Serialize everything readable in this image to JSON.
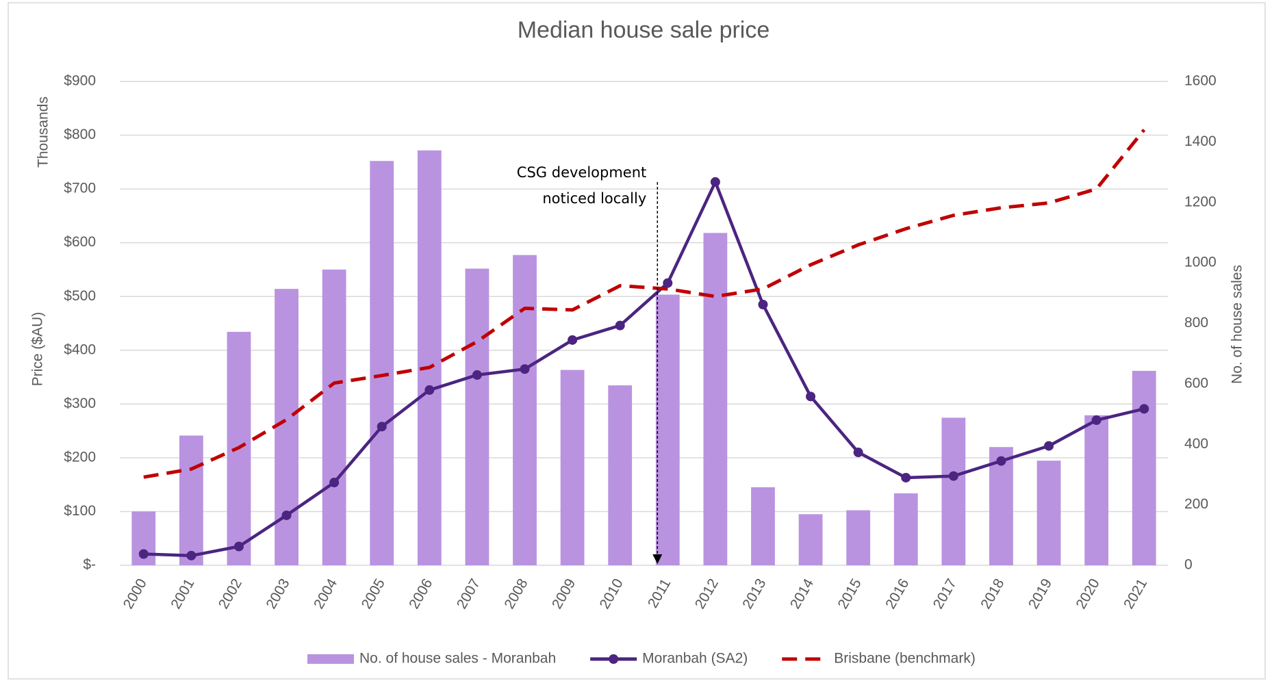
{
  "chart_data": {
    "type": "bar_line",
    "title": "Median house sale price",
    "y_label": "Price ($AU)",
    "y_unit_label": "Thousands",
    "y2_label": "No. of house sales",
    "categories": [
      "2000",
      "2001",
      "2002",
      "2003",
      "2004",
      "2005",
      "2006",
      "2007",
      "2008",
      "2009",
      "2010",
      "2011",
      "2012",
      "2013",
      "2014",
      "2015",
      "2016",
      "2017",
      "2018",
      "2019",
      "2020",
      "2021"
    ],
    "series": [
      {
        "name": "No. of house sales - Moranbah",
        "type": "bar",
        "axis": "y2",
        "color": "#b993e0",
        "values": [
          178,
          429,
          772,
          914,
          978,
          1337,
          1372,
          981,
          1026,
          646,
          595,
          895,
          1099,
          258,
          169,
          182,
          238,
          488,
          391,
          346,
          496,
          643
        ]
      },
      {
        "name": "Moranbah (SA2)",
        "type": "line",
        "color": "#4b2580",
        "markers": true,
        "values": [
          21,
          18,
          35,
          93,
          154,
          258,
          326,
          354,
          365,
          419,
          446,
          525,
          713,
          485,
          314,
          210,
          163,
          166,
          194,
          222,
          270,
          291
        ]
      },
      {
        "name": "Brisbane (benchmark)",
        "type": "line",
        "color": "#c00000",
        "dashed": true,
        "values": [
          164,
          179,
          219,
          271,
          339,
          353,
          368,
          416,
          478,
          475,
          520,
          514,
          500,
          514,
          559,
          596,
          626,
          651,
          665,
          674,
          700,
          810
        ]
      }
    ],
    "ylim": [
      0,
      900
    ],
    "yticks": [
      {
        "value": 0,
        "label": "$-"
      },
      {
        "value": 100,
        "label": "$100"
      },
      {
        "value": 200,
        "label": "$200"
      },
      {
        "value": 300,
        "label": "$300"
      },
      {
        "value": 400,
        "label": "$400"
      },
      {
        "value": 500,
        "label": "$500"
      },
      {
        "value": 600,
        "label": "$600"
      },
      {
        "value": 700,
        "label": "$700"
      },
      {
        "value": 800,
        "label": "$800"
      },
      {
        "value": 900,
        "label": "$900"
      }
    ],
    "y2lim": [
      0,
      1600
    ],
    "y2ticks": [
      0,
      200,
      400,
      600,
      800,
      1000,
      1200,
      1400,
      1600
    ],
    "grid": true,
    "legend": "bottom",
    "annotation": {
      "lines": [
        "CSG development",
        "noticed locally"
      ],
      "category": "2011"
    }
  }
}
